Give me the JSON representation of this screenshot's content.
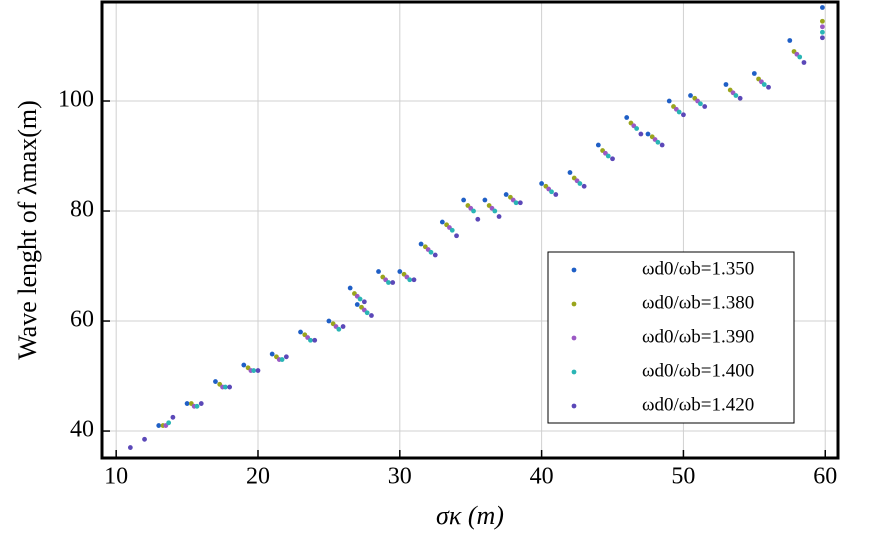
{
  "chart_data": {
    "type": "scatter",
    "xlabel": "σκ (m)",
    "ylabel": "Wave lenght of λmax(m)",
    "xlim": [
      9,
      60.9
    ],
    "ylim": [
      35.1,
      118
    ],
    "xticks": [
      10,
      20,
      30,
      40,
      50,
      60
    ],
    "yticks": [
      40,
      60,
      80,
      100
    ],
    "grid": true,
    "series": [
      {
        "name": "ωd0/ωb=1.350",
        "color": "#1f5fc6",
        "x": [
          13,
          15,
          17,
          19,
          21,
          23,
          25,
          26.5,
          27,
          28.5,
          30,
          31.5,
          33,
          34.5,
          36,
          37.5,
          40,
          42,
          44,
          46,
          47.5,
          49,
          50.5,
          53,
          55,
          57.5,
          59.8
        ],
        "values": [
          41,
          45,
          49,
          52,
          54,
          58,
          60,
          66,
          63,
          69,
          69,
          74,
          78,
          82,
          82,
          83,
          85,
          87,
          92,
          97,
          94,
          100,
          101,
          103,
          105,
          111,
          117
        ]
      },
      {
        "name": "ωd0/ωb=1.380",
        "color": "#9aa51c",
        "x": [
          13.3,
          15.3,
          17.3,
          19.3,
          21.3,
          23.3,
          25.3,
          26.8,
          27.3,
          28.8,
          30.3,
          31.8,
          33.3,
          34.8,
          36.3,
          37.8,
          40.3,
          42.3,
          44.3,
          46.3,
          47.8,
          49.3,
          50.8,
          53.3,
          55.3,
          57.8,
          59.8
        ],
        "values": [
          41,
          45,
          48.5,
          51.5,
          53.5,
          57.5,
          59.5,
          65,
          62.5,
          68,
          68.5,
          73.5,
          77.5,
          81,
          81,
          82.5,
          84.5,
          86,
          91,
          96,
          93.5,
          99,
          100.5,
          102,
          104,
          109,
          114.5
        ]
      },
      {
        "name": "ωd0/ωb=1.390",
        "color": "#9b59c4",
        "x": [
          13.5,
          15.5,
          17.5,
          19.5,
          21.5,
          23.5,
          25.5,
          27,
          27.5,
          29,
          30.5,
          32,
          33.5,
          35,
          36.5,
          38,
          40.5,
          42.5,
          44.5,
          46.5,
          48,
          49.5,
          51,
          53.5,
          55.5,
          58,
          59.8
        ],
        "values": [
          41,
          44.5,
          48,
          51,
          53,
          57,
          59,
          64.5,
          62,
          67.5,
          68,
          73,
          77,
          80.5,
          80.5,
          82,
          84,
          85.5,
          90.5,
          95.5,
          93,
          98.5,
          100,
          101.5,
          103.5,
          108.5,
          113.5
        ]
      },
      {
        "name": "ωd0/ωb=1.400",
        "color": "#2ab5b5",
        "x": [
          13.7,
          15.7,
          17.7,
          19.7,
          21.7,
          23.7,
          25.7,
          27.2,
          27.7,
          29.2,
          30.7,
          32.2,
          33.7,
          35.2,
          36.7,
          38.2,
          40.7,
          42.7,
          44.7,
          46.7,
          48.2,
          49.7,
          51.2,
          53.7,
          55.7,
          58.2,
          59.8
        ],
        "values": [
          41.5,
          44.5,
          48,
          51,
          53,
          56.5,
          58.5,
          64,
          61.5,
          67,
          67.5,
          72.5,
          76.5,
          80,
          80,
          81.5,
          83.5,
          85,
          90,
          95,
          92.5,
          98,
          99.5,
          101,
          103,
          108,
          112.5
        ]
      },
      {
        "name": "ωd0/ωb=1.420",
        "color": "#5b48b8",
        "x": [
          11,
          12,
          14,
          16,
          18,
          20,
          22,
          24,
          26,
          27.5,
          28,
          29.5,
          31,
          32.5,
          34,
          35.5,
          37,
          38.5,
          41,
          43,
          45,
          47,
          48.5,
          50,
          51.5,
          54,
          56,
          58.5,
          59.8
        ],
        "values": [
          37,
          38.5,
          42.5,
          45,
          48,
          51,
          53.5,
          56.5,
          59,
          63.5,
          61,
          67,
          67.5,
          72,
          75.5,
          78.5,
          79,
          81.5,
          83,
          84.5,
          89.5,
          94,
          92,
          97.5,
          99,
          100.5,
          102.5,
          107,
          111.5
        ]
      }
    ]
  }
}
